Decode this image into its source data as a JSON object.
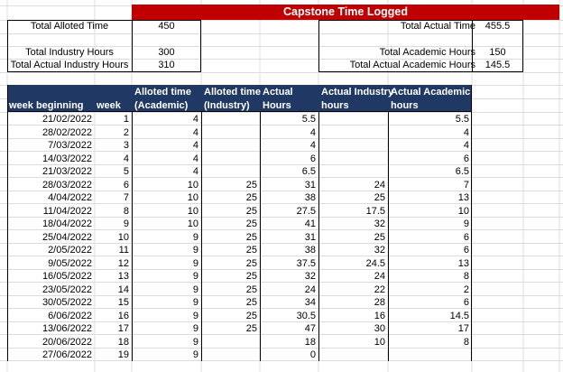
{
  "sheet": {
    "title": "Capstone Time Logged",
    "summary_left": [
      {
        "label": "Total Alloted Time",
        "value": "450"
      },
      {
        "label": "Total Industry Hours",
        "value": "300"
      },
      {
        "label": "Total Actual Industry Hours",
        "value": "310"
      }
    ],
    "summary_right": [
      {
        "label": "Total Actual Time",
        "value": "455.5"
      },
      {
        "label": "Total Academic Hours",
        "value": "150"
      },
      {
        "label": "Total Actual Academic Hours",
        "value": "145.5"
      }
    ],
    "headers": {
      "week_beginning": "week beginning",
      "week": "week",
      "alloted_academic_1": "Alloted time",
      "alloted_academic_2": "(Academic)",
      "alloted_industry_1": "Alloted time",
      "alloted_industry_2": "(Industry)",
      "actual_hours_1": "Actual",
      "actual_hours_2": "Hours",
      "actual_industry_1": "Actual Industry",
      "actual_industry_2": "hours",
      "actual_academic_1": "Actual Academic",
      "actual_academic_2": "hours"
    },
    "rows": [
      [
        "21/02/2022",
        "1",
        "4",
        "",
        "5.5",
        "",
        "5.5"
      ],
      [
        "28/02/2022",
        "2",
        "4",
        "",
        "4",
        "",
        "4"
      ],
      [
        "7/03/2022",
        "3",
        "4",
        "",
        "4",
        "",
        "4"
      ],
      [
        "14/03/2022",
        "4",
        "4",
        "",
        "6",
        "",
        "6"
      ],
      [
        "21/03/2022",
        "5",
        "4",
        "",
        "6.5",
        "",
        "6.5"
      ],
      [
        "28/03/2022",
        "6",
        "10",
        "25",
        "31",
        "24",
        "7"
      ],
      [
        "4/04/2022",
        "7",
        "10",
        "25",
        "38",
        "25",
        "13"
      ],
      [
        "11/04/2022",
        "8",
        "10",
        "25",
        "27.5",
        "17.5",
        "10"
      ],
      [
        "18/04/2022",
        "9",
        "10",
        "25",
        "41",
        "32",
        "9"
      ],
      [
        "25/04/2022",
        "10",
        "9",
        "25",
        "31",
        "25",
        "6"
      ],
      [
        "2/05/2022",
        "11",
        "9",
        "25",
        "38",
        "32",
        "6"
      ],
      [
        "9/05/2022",
        "12",
        "9",
        "25",
        "37.5",
        "24.5",
        "13"
      ],
      [
        "16/05/2022",
        "13",
        "9",
        "25",
        "32",
        "24",
        "8"
      ],
      [
        "23/05/2022",
        "14",
        "9",
        "25",
        "24",
        "22",
        "2"
      ],
      [
        "30/05/2022",
        "15",
        "9",
        "25",
        "34",
        "28",
        "6"
      ],
      [
        "6/06/2022",
        "16",
        "9",
        "25",
        "30.5",
        "16",
        "14.5"
      ],
      [
        "13/06/2022",
        "17",
        "9",
        "25",
        "47",
        "30",
        "17"
      ],
      [
        "20/06/2022",
        "18",
        "9",
        "",
        "18",
        "10",
        "8"
      ],
      [
        "27/06/2022",
        "19",
        "9",
        "",
        "0",
        "",
        ""
      ]
    ]
  }
}
